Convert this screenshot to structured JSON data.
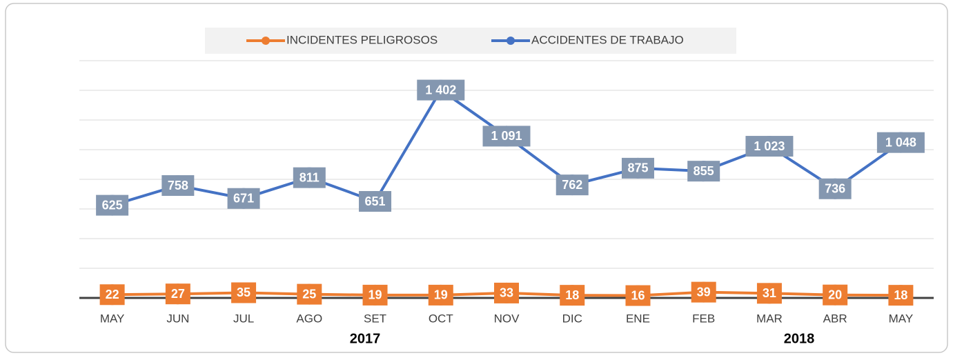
{
  "chart_data": {
    "type": "line",
    "categories": [
      "MAY",
      "JUN",
      "JUL",
      "AGO",
      "SET",
      "OCT",
      "NOV",
      "DIC",
      "ENE",
      "FEB",
      "MAR",
      "ABR",
      "MAY"
    ],
    "year_labels": [
      "2017",
      "2018"
    ],
    "series": [
      {
        "name": "INCIDENTES PELIGROSOS",
        "color": "#ed7d31",
        "label_color": "#ed7d31",
        "values": [
          22,
          27,
          35,
          25,
          19,
          19,
          33,
          18,
          16,
          39,
          31,
          20,
          18
        ]
      },
      {
        "name": "ACCIDENTES DE TRABAJO",
        "color": "#4472c4",
        "label_color": "#8497b0",
        "values": [
          625,
          758,
          671,
          811,
          651,
          1402,
          1091,
          762,
          875,
          855,
          1023,
          736,
          1048
        ],
        "value_labels": [
          "625",
          "758",
          "671",
          "811",
          "651",
          "1 402",
          "1 091",
          "762",
          "875",
          "855",
          "1 023",
          "736",
          "1 048"
        ]
      }
    ],
    "ylim": [
      0,
      1600
    ],
    "yticks": [
      0,
      200,
      400,
      600,
      800,
      1000,
      1200,
      1400,
      1600
    ],
    "grid": true
  }
}
